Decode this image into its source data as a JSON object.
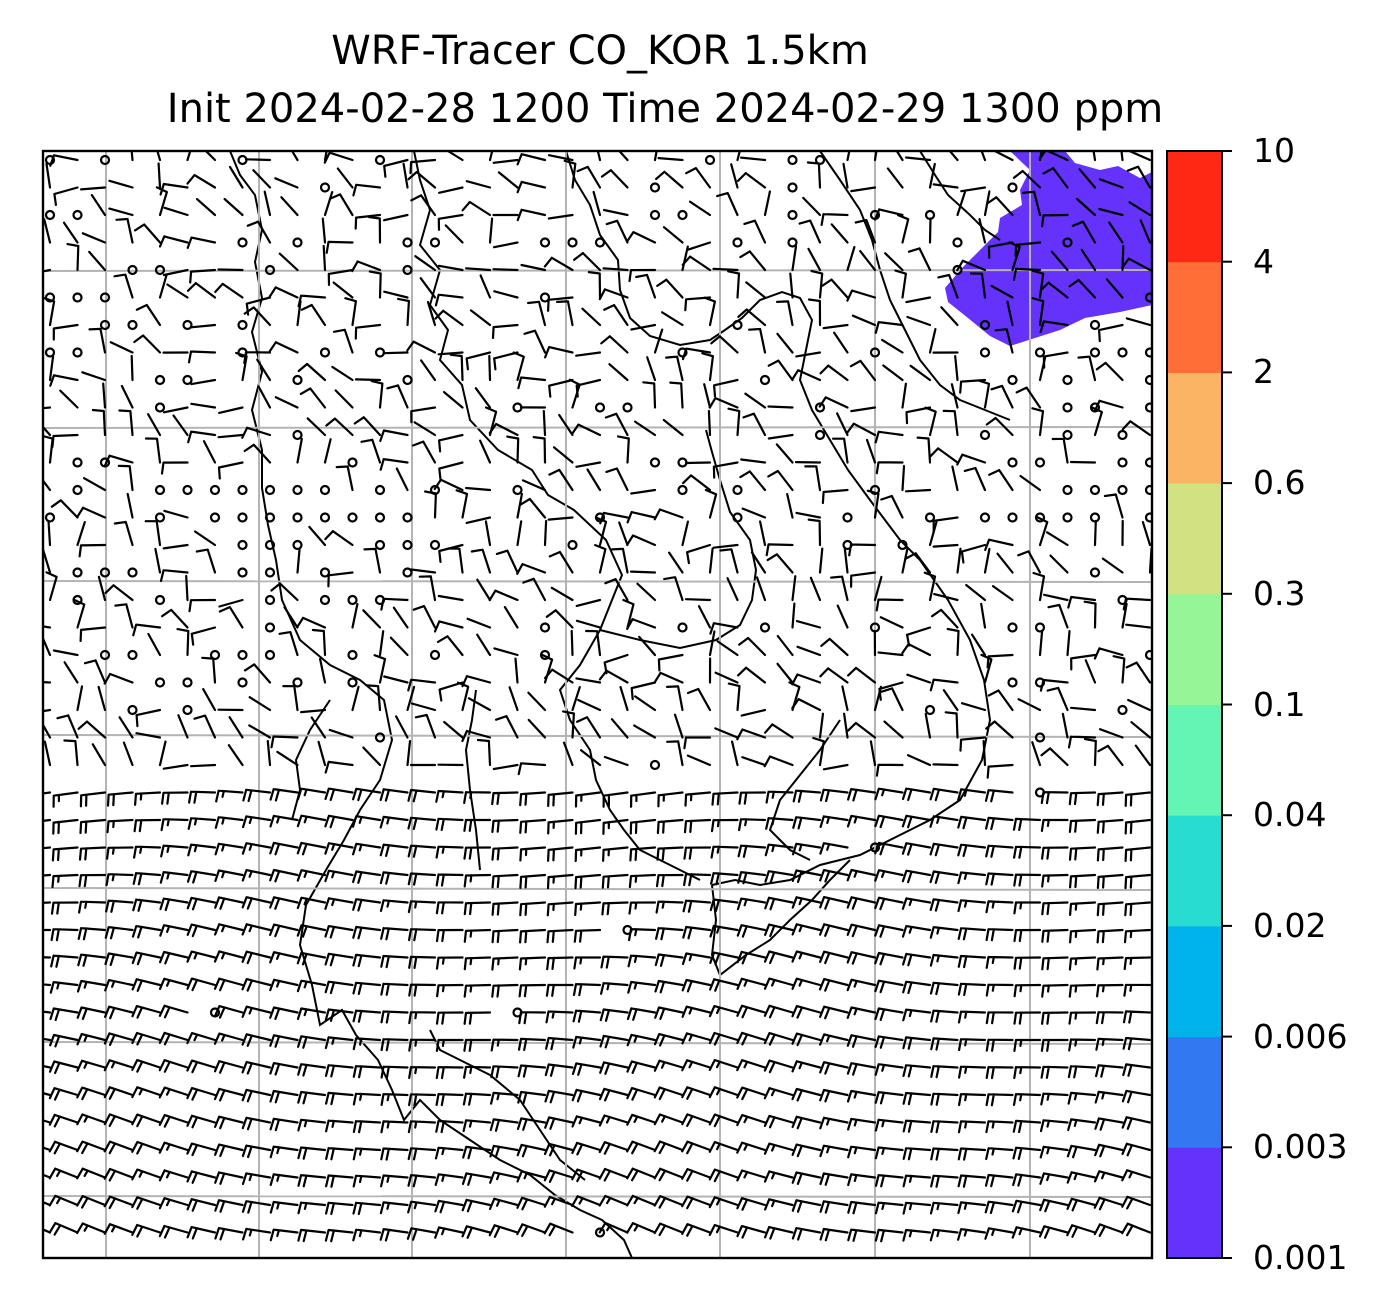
{
  "title": {
    "line1": "WRF-Tracer CO_KOR 1.5km",
    "line2": "Init 2024-02-28 1200 Time 2024-02-29 1300 ppm"
  },
  "colorbar": {
    "ticks": [
      "0.001",
      "0.003",
      "0.006",
      "0.02",
      "0.04",
      "0.1",
      "0.3",
      "0.6",
      "2",
      "4",
      "10"
    ],
    "colors": [
      "#6432fa",
      "#3278f0",
      "#00b4eb",
      "#28dcd2",
      "#64f5b4",
      "#96f596",
      "#d2e182",
      "#fab464",
      "#ff6e37",
      "#ff2814"
    ]
  },
  "map": {
    "style": {
      "wind_barb_color": "#000000",
      "coastline_color": "#000000",
      "gridline_color": "#b4b4b4",
      "tracer_fill_color": "#6432fa"
    }
  }
}
